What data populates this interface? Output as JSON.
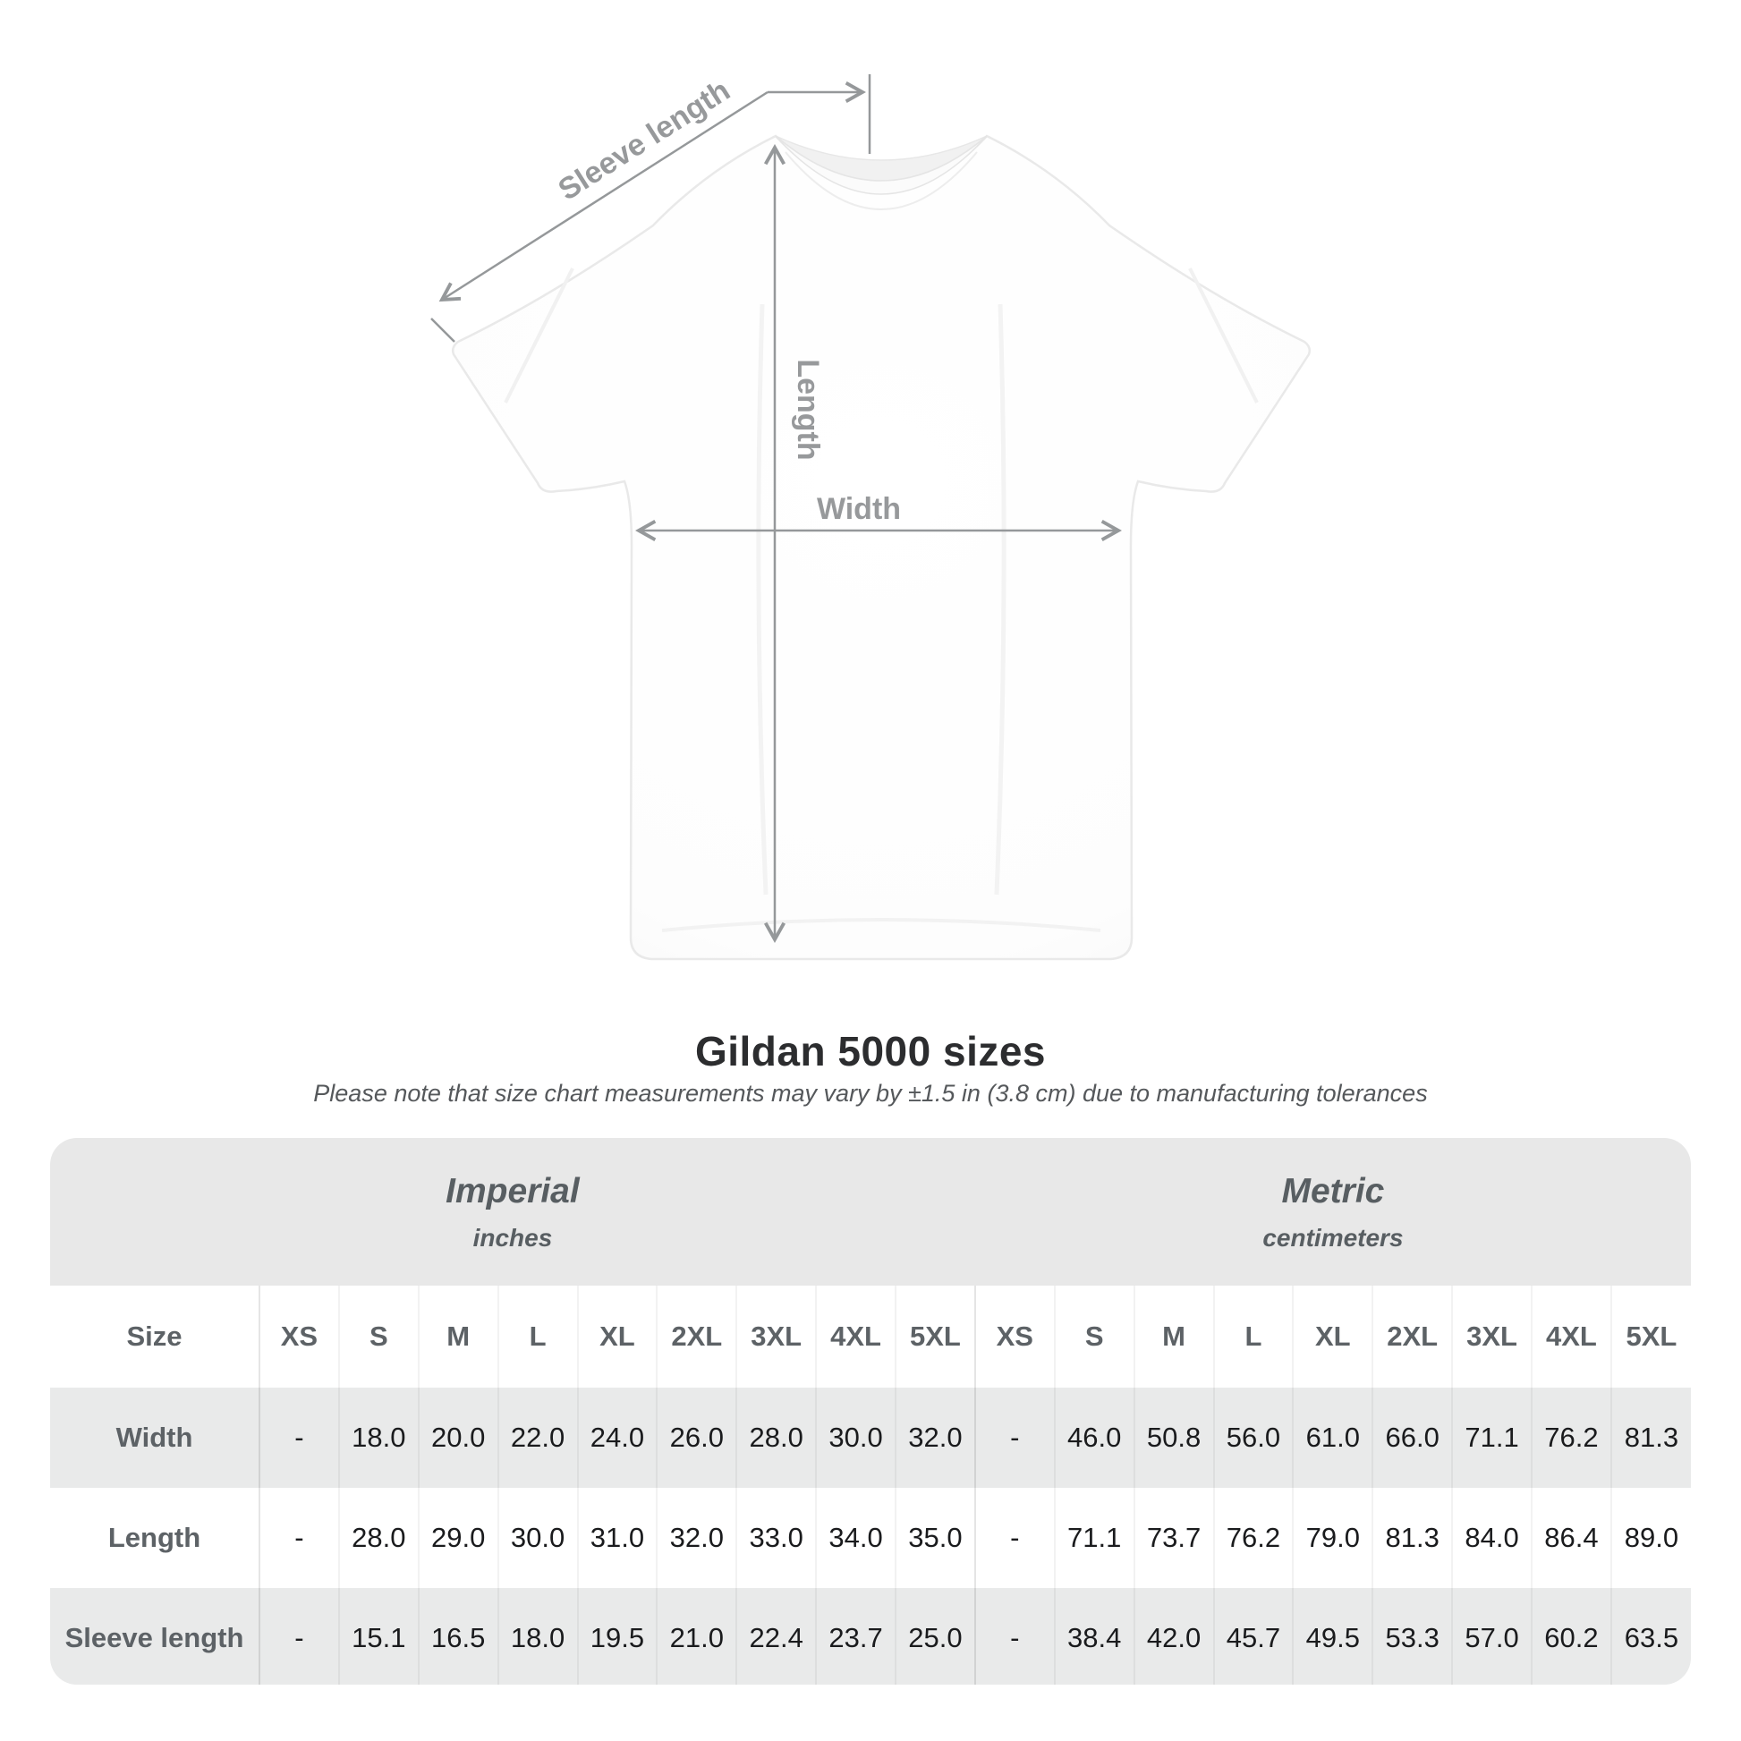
{
  "title": "Gildan 5000 sizes",
  "subtitle": "Please note that size chart measurements may vary by ±1.5 in (3.8 cm) due to manufacturing tolerances",
  "diagram": {
    "labels": {
      "sleeve_length": "Sleeve length",
      "length": "Length",
      "width": "Width"
    }
  },
  "chart_data": {
    "type": "table",
    "title": "Gildan 5000 sizes",
    "subtitle": "Please note that size chart measurements may vary by ±1.5 in (3.8 cm) due to manufacturing tolerances",
    "size_label": "Size",
    "column_groups": [
      {
        "label": "Imperial",
        "units": "inches"
      },
      {
        "label": "Metric",
        "units": "centimeters"
      }
    ],
    "sizes": [
      "XS",
      "S",
      "M",
      "L",
      "XL",
      "2XL",
      "3XL",
      "4XL",
      "5XL"
    ],
    "rows": [
      {
        "label": "Width",
        "imperial": [
          "-",
          "18.0",
          "20.0",
          "22.0",
          "24.0",
          "26.0",
          "28.0",
          "30.0",
          "32.0"
        ],
        "metric": [
          "-",
          "46.0",
          "50.8",
          "56.0",
          "61.0",
          "66.0",
          "71.1",
          "76.2",
          "81.3"
        ]
      },
      {
        "label": "Length",
        "imperial": [
          "-",
          "28.0",
          "29.0",
          "30.0",
          "31.0",
          "32.0",
          "33.0",
          "34.0",
          "35.0"
        ],
        "metric": [
          "-",
          "71.1",
          "73.7",
          "76.2",
          "79.0",
          "81.3",
          "84.0",
          "86.4",
          "89.0"
        ]
      },
      {
        "label": "Sleeve length",
        "imperial": [
          "-",
          "15.1",
          "16.5",
          "18.0",
          "19.5",
          "21.0",
          "22.4",
          "23.7",
          "25.0"
        ],
        "metric": [
          "-",
          "38.4",
          "42.0",
          "45.7",
          "49.5",
          "53.3",
          "57.0",
          "60.2",
          "63.5"
        ]
      }
    ]
  },
  "colors": {
    "band_gray": "#e8e8e8",
    "row_stripe_gray": "#e9eaea",
    "separator": "rgba(0,0,0,0.05)",
    "value_text": "#1a1b1d",
    "header_text": "#5d6266",
    "title_text": "#2c2d2f",
    "subtitle_text": "#55585b",
    "annotation_gray": "#95989a"
  }
}
